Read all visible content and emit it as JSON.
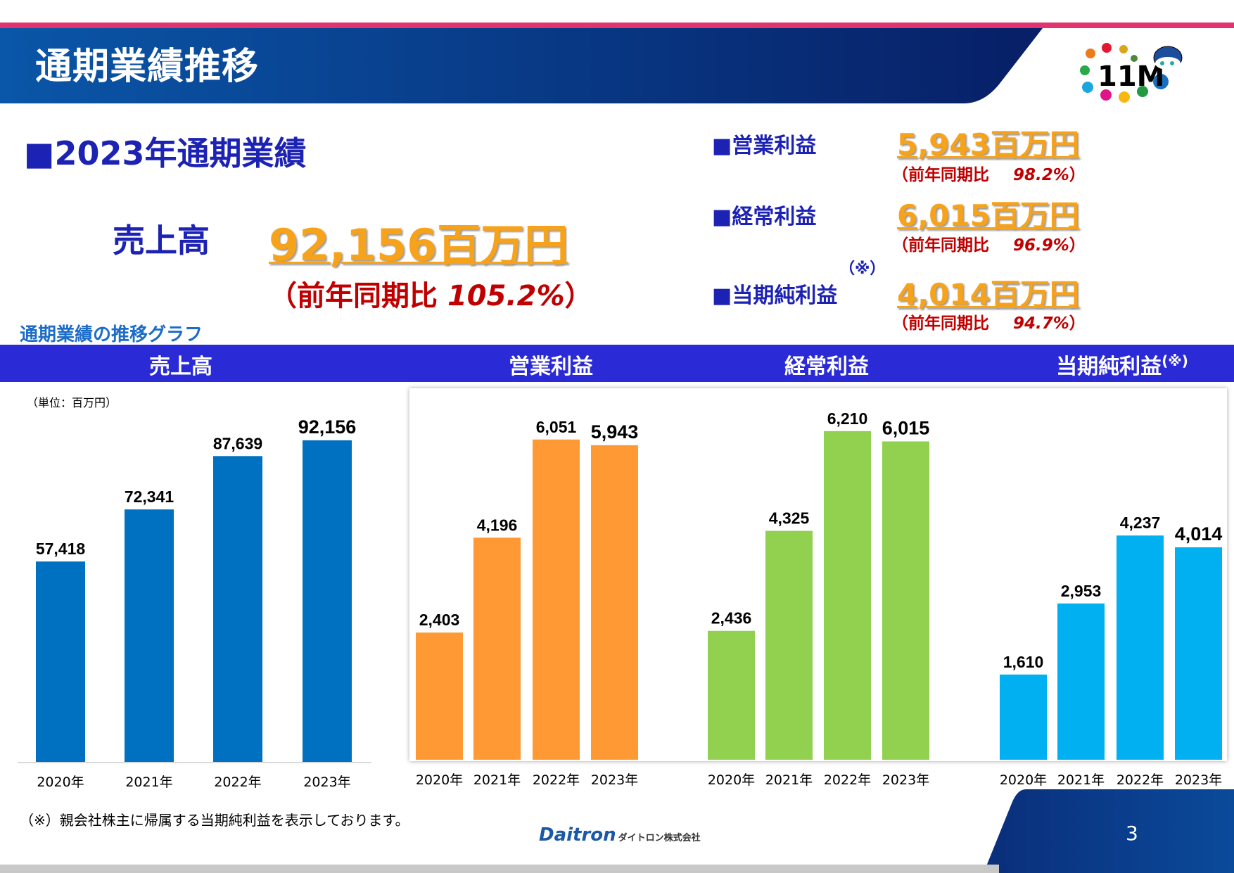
{
  "header": {
    "title": "通期業績推移"
  },
  "summary": {
    "section_title": "■2023年通期業績",
    "sales": {
      "label": "売上高",
      "value": "92,156百万円",
      "yoy_prefix": "（前年同期比",
      "yoy_value": "105.2%",
      "yoy_suffix": "）"
    },
    "kpis": [
      {
        "label": "■営業利益",
        "value": "5,943百万円",
        "yoy_prefix": "（前年同期比",
        "yoy_value": "98.2%",
        "yoy_suffix": "）"
      },
      {
        "label": "■経常利益",
        "value": "6,015百万円",
        "yoy_prefix": "（前年同期比",
        "yoy_value": "96.9%",
        "yoy_suffix": "）"
      },
      {
        "label": "■当期純利益",
        "value": "4,014百万円",
        "yoy_prefix": "（前年同期比",
        "yoy_value": "94.7%",
        "yoy_suffix": "）"
      }
    ],
    "note_mark": "（※）"
  },
  "graph_title": "通期業績の推移グラフ",
  "band_headers": [
    "売上高",
    "営業利益",
    "経常利益",
    "当期純利益"
  ],
  "band_note_mark": "(※)",
  "unit": "（単位：百万円）",
  "chart_data": [
    {
      "type": "bar",
      "title": "売上高",
      "categories": [
        "2020年",
        "2021年",
        "2022年",
        "2023年"
      ],
      "values": [
        57418,
        72341,
        87639,
        92156
      ],
      "labels": [
        "57,418",
        "72,341",
        "87,639",
        "92,156"
      ],
      "color": "#0070c0",
      "ylim": [
        0,
        100000
      ]
    },
    {
      "type": "bar",
      "title": "営業利益",
      "categories": [
        "2020年",
        "2021年",
        "2022年",
        "2023年"
      ],
      "values": [
        2403,
        4196,
        6051,
        5943
      ],
      "labels": [
        "2,403",
        "4,196",
        "6,051",
        "5,943"
      ],
      "color": "#ff9933",
      "ylim": [
        0,
        6500
      ]
    },
    {
      "type": "bar",
      "title": "経常利益",
      "categories": [
        "2020年",
        "2021年",
        "2022年",
        "2023年"
      ],
      "values": [
        2436,
        4325,
        6210,
        6015
      ],
      "labels": [
        "2,436",
        "4,325",
        "6,210",
        "6,015"
      ],
      "color": "#92d050",
      "ylim": [
        0,
        6500
      ]
    },
    {
      "type": "bar",
      "title": "当期純利益",
      "categories": [
        "2020年",
        "2021年",
        "2022年",
        "2023年"
      ],
      "values": [
        1610,
        2953,
        4237,
        4014
      ],
      "labels": [
        "1,610",
        "2,953",
        "4,237",
        "4,014"
      ],
      "color": "#00b0f0",
      "ylim": [
        0,
        6500
      ]
    }
  ],
  "footer": {
    "note": "（※）親会社株主に帰属する当期純利益を表示しております。",
    "company_logo": "Daitron",
    "company_name": "ダイトロン株式会社",
    "page_number": "3"
  },
  "colors": {
    "accent_pink": "#e2336e",
    "header_blue": "#0a4a9a",
    "band_blue": "#2a2ad6",
    "value_orange": "#f7a21b",
    "yoy_red": "#c00000"
  }
}
